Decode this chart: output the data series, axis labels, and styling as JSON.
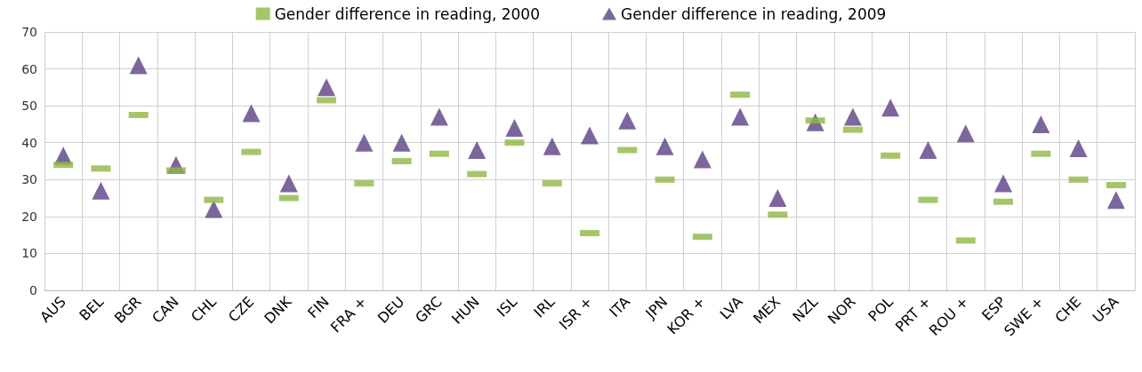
{
  "chart_data": {
    "type": "scatter",
    "categories": [
      "AUS",
      "BEL",
      "BGR",
      "CAN",
      "CHL",
      "CZE",
      "DNK",
      "FIN",
      "FRA +",
      "DEU",
      "GRC",
      "HUN",
      "ISL",
      "IRL",
      "ISR +",
      "ITA",
      "JPN",
      "KOR +",
      "LVA",
      "MEX",
      "NZL",
      "NOR",
      "POL",
      "PRT +",
      "ROU +",
      "ESP",
      "SWE +",
      "CHE",
      "USA"
    ],
    "series": [
      {
        "name": "Gender difference in reading, 2000",
        "color": "#8db843",
        "marker": "square",
        "values": [
          34,
          33,
          47.5,
          32.5,
          24.5,
          37.5,
          25,
          51.5,
          29,
          35,
          37,
          31.5,
          40,
          29,
          15.5,
          38,
          30,
          14.5,
          53,
          20.5,
          46,
          43.5,
          36.5,
          24.5,
          13.5,
          24,
          37,
          30,
          28.5
        ]
      },
      {
        "name": "Gender difference in reading, 2009",
        "color": "#5c3f86",
        "marker": "triangle",
        "values": [
          36.5,
          27,
          61,
          34,
          22,
          48,
          29,
          55,
          40,
          40,
          47,
          38,
          44,
          39,
          42,
          46,
          39,
          35.5,
          47,
          25,
          45.5,
          47,
          49.5,
          38,
          42.5,
          29,
          45,
          38.5,
          24.5
        ]
      }
    ],
    "ylim": [
      0,
      70
    ],
    "yticks": [
      0,
      10,
      20,
      30,
      40,
      50,
      60,
      70
    ],
    "grid": true,
    "legend": "top"
  }
}
